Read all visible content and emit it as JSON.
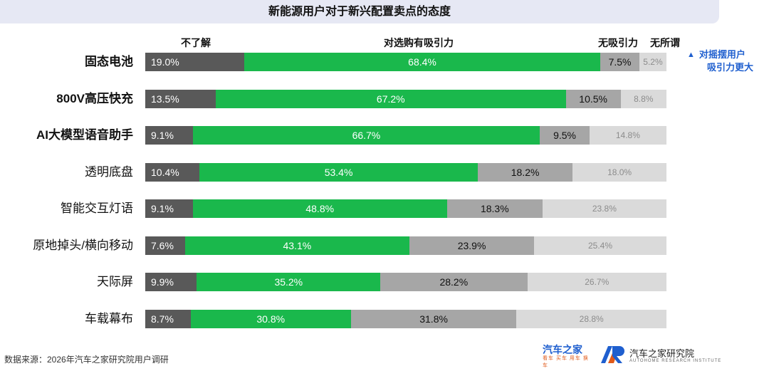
{
  "title": "新能源用户对于新兴配置卖点的态度",
  "chart_data": {
    "type": "bar",
    "stacked": true,
    "orientation": "horizontal",
    "title": "新能源用户对于新兴配置卖点的态度",
    "series_names": [
      "不了解",
      "对选购有吸引力",
      "无吸引力",
      "无所谓"
    ],
    "series_colors": [
      "#595959",
      "#1ab84c",
      "#a6a6a6",
      "#dadada"
    ],
    "rows": [
      {
        "label": "固态电池",
        "bold": true,
        "values": [
          19.0,
          68.4,
          7.5,
          5.2
        ],
        "labels": [
          "19.0%",
          "68.4%",
          "7.5%",
          "5.2%"
        ]
      },
      {
        "label": "800V高压快充",
        "bold": true,
        "values": [
          13.5,
          67.2,
          10.5,
          8.8
        ],
        "labels": [
          "13.5%",
          "67.2%",
          "10.5%",
          "8.8%"
        ]
      },
      {
        "label": "AI大模型语音助手",
        "bold": true,
        "values": [
          9.1,
          66.7,
          9.5,
          14.8
        ],
        "labels": [
          "9.1%",
          "66.7%",
          "9.5%",
          "14.8%"
        ]
      },
      {
        "label": "透明底盘",
        "bold": false,
        "values": [
          10.4,
          53.4,
          18.2,
          18.0
        ],
        "labels": [
          "10.4%",
          "53.4%",
          "18.2%",
          "18.0%"
        ]
      },
      {
        "label": "智能交互灯语",
        "bold": false,
        "values": [
          9.1,
          48.8,
          18.3,
          23.8
        ],
        "labels": [
          "9.1%",
          "48.8%",
          "18.3%",
          "23.8%"
        ]
      },
      {
        "label": "原地掉头/横向移动",
        "bold": false,
        "values": [
          7.6,
          43.1,
          23.9,
          25.4
        ],
        "labels": [
          "7.6%",
          "43.1%",
          "23.9%",
          "25.4%"
        ]
      },
      {
        "label": "天际屏",
        "bold": false,
        "values": [
          9.9,
          35.2,
          28.2,
          26.7
        ],
        "labels": [
          "9.9%",
          "35.2%",
          "28.2%",
          "26.7%"
        ]
      },
      {
        "label": "车载幕布",
        "bold": false,
        "values": [
          8.7,
          30.8,
          31.8,
          28.8
        ],
        "labels": [
          "8.7%",
          "30.8%",
          "31.8%",
          "28.8%"
        ]
      }
    ],
    "annotation": {
      "icon": "▲",
      "line1": "对摇摆用户",
      "line2": "吸引力更大"
    }
  },
  "footer": {
    "source": "数据来源：2026年汽车之家研究院用户调研",
    "logo1_main": "汽车之家",
    "logo1_sub": "看车 买车 用车 换车",
    "logo2_name": "汽车之家研究院",
    "logo2_sub": "AUTOHOME RESEARCH INSTITUTE"
  }
}
